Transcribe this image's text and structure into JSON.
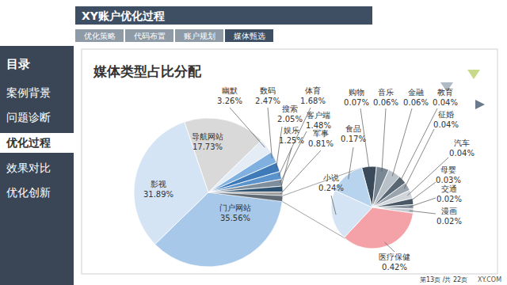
{
  "header": {
    "title": "XY账户优化过程"
  },
  "tabs": [
    "优化策略",
    "代码布置",
    "账户规划",
    "媒体甄选"
  ],
  "sidebar": {
    "heading": "目录",
    "items": [
      "案例背景",
      "问题诊断",
      "优化过程",
      "效果对比",
      "优化创新"
    ]
  },
  "footer": {
    "page": "第13页 /共 22页",
    "logo": "XY.COM"
  },
  "chart_data": [
    {
      "type": "pie",
      "title": "媒体类型占比分配",
      "categories": [
        "门户网站",
        "影视",
        "导航网站",
        "幽默",
        "数码",
        "搜索",
        "体育",
        "客户端",
        "娱乐",
        "军事"
      ],
      "values": [
        35.56,
        31.89,
        17.73,
        3.26,
        2.47,
        2.05,
        1.68,
        1.48,
        1.25,
        0.81
      ],
      "value_labels": [
        "35.56%",
        "31.89%",
        "17.73%",
        "3.26%",
        "2.47%",
        "2.05%",
        "1.68%",
        "1.48%",
        "1.25%",
        "0.81%"
      ],
      "colors": [
        "#a8c8ea",
        "#d4e4f4",
        "#d9d9d9",
        "#e4ecf6",
        "#7fb0e0",
        "#3f7ab8",
        "#5b93cc",
        "#7f8e9c",
        "#2f5373",
        "#a0a0a0"
      ],
      "data_labels": true
    },
    {
      "type": "pie",
      "categories": [
        "购物",
        "音乐",
        "金融",
        "教育",
        "征婚",
        "汽车",
        "母婴",
        "交通",
        "漫画",
        "医疗保健",
        "小说",
        "食品"
      ],
      "values": [
        0.07,
        0.06,
        0.06,
        0.04,
        0.04,
        0.04,
        0.03,
        0.02,
        0.02,
        0.42,
        0.24,
        0.17
      ],
      "value_labels": [
        "0.07%",
        "0.06%",
        "0.06%",
        "0.04%",
        "0.04%",
        "0.04%",
        "0.03%",
        "0.02%",
        "0.02%",
        "0.42%",
        "0.24%",
        "0.17%"
      ],
      "colors": [
        "#3b4a5a",
        "#7a8795",
        "#b8c0c8",
        "#5a6775",
        "#9aa4ae",
        "#d0d5da",
        "#4a5866",
        "#8a96a2",
        "#c4cbd2",
        "#f4a2a8",
        "#d4e4f4",
        "#b7d3ee"
      ],
      "data_labels": true
    }
  ]
}
